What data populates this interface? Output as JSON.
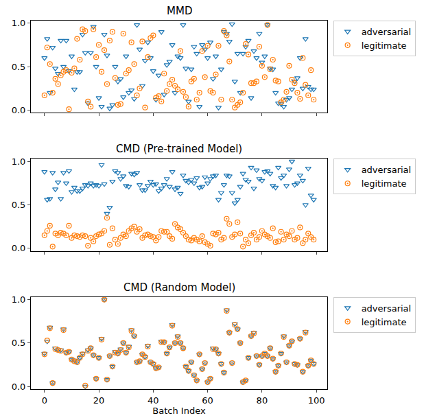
{
  "chart_data": [
    {
      "type": "scatter",
      "title": "MMD",
      "legend": "upper right",
      "tick_labels": "y",
      "xlim": [
        -5,
        104
      ],
      "xticks": [
        0,
        20,
        40,
        60,
        80,
        100
      ],
      "ylim": [
        -0.03,
        1.03
      ],
      "yticks": [
        {
          "value": 0,
          "label": "0.0"
        },
        {
          "value": 0.5,
          "label": "0.5"
        },
        {
          "value": 1,
          "label": "1.0"
        }
      ],
      "x": [
        0,
        1,
        2,
        3,
        4,
        5,
        6,
        7,
        8,
        9,
        10,
        11,
        12,
        13,
        14,
        15,
        16,
        17,
        18,
        19,
        20,
        21,
        22,
        23,
        24,
        25,
        26,
        27,
        28,
        29,
        30,
        31,
        32,
        33,
        34,
        35,
        36,
        37,
        38,
        39,
        40,
        41,
        42,
        43,
        44,
        45,
        46,
        47,
        48,
        49,
        50,
        51,
        52,
        53,
        54,
        55,
        56,
        57,
        58,
        59,
        60,
        61,
        62,
        63,
        64,
        65,
        66,
        67,
        68,
        69,
        70,
        71,
        72,
        73,
        74,
        75,
        76,
        77,
        78,
        79,
        80,
        81,
        82,
        83,
        84,
        85,
        86,
        87,
        88,
        89,
        90,
        91,
        92,
        93,
        94,
        95,
        96,
        97,
        98,
        99
      ],
      "series": [
        {
          "name": "adversarial",
          "color": "#1f77b4",
          "marker": "triangle-down-open",
          "values": [
            0.6,
            0.82,
            0.2,
            0.72,
            0.48,
            0.42,
            0.8,
            0.5,
            0.8,
            0.45,
            0.62,
            0.24,
            0.44,
            0.44,
            0.87,
            0.66,
            0.08,
            0.66,
            0.96,
            0.5,
            0.14,
            0.04,
            0.87,
            0.63,
            0.02,
            0.06,
            0.5,
            0.33,
            0.36,
            0.15,
            0.62,
            0.2,
            0.23,
            0.13,
            0.98,
            0.7,
            0.28,
            0.57,
            0.78,
            0.6,
            0.45,
            0.12,
            0.4,
            0.9,
            0.18,
            0.52,
            0.56,
            0.75,
            0.2,
            0.62,
            0.6,
            0.98,
            0.48,
            0.1,
            0.47,
            0.73,
            0.65,
            0.04,
            0.75,
            0.7,
            0.6,
            0.78,
            0.36,
            0.62,
            0.03,
            0.47,
            0.9,
            0.88,
            0.79,
            0.99,
            0.33,
            0.65,
            0.2,
            0.65,
            0.73,
            0.8,
            0.14,
            0.68,
            0.6,
            0.88,
            0.55,
            0.62,
            0.98,
            0.48,
            0.47,
            0.2,
            0.08,
            0.07,
            0.04,
            0.12,
            0.14,
            0.24,
            0.33,
            0.37,
            0.6,
            0.25,
            0.82,
            0.27,
            0.24,
            0.24
          ]
        },
        {
          "name": "legitimate",
          "color": "#ff7f0e",
          "marker": "circle-open-dot",
          "values": [
            0.17,
            0.72,
            0.53,
            0.2,
            0.36,
            0.3,
            0.4,
            0.44,
            0.46,
            0.01,
            0.43,
            0.48,
            0.82,
            0.58,
            0.93,
            0.91,
            0.1,
            0.04,
            0.93,
            0.61,
            0.75,
            0.44,
            0.69,
            0.3,
            0.8,
            0.9,
            0.37,
            0.06,
            0.07,
            0.88,
            0.42,
            0.46,
            0.78,
            0.53,
            0.17,
            0.25,
            0.79,
            0.03,
            0.61,
            0.83,
            0.86,
            0.14,
            0.16,
            0.1,
            0.42,
            0.22,
            0.3,
            0.35,
            0.28,
            0.24,
            0.68,
            0.21,
            0.15,
            0.04,
            0.33,
            0.36,
            0.12,
            0.2,
            0.68,
            0.38,
            0.74,
            0.22,
            0.2,
            0.41,
            0.74,
            0.12,
            0.91,
            0.86,
            0.56,
            0.12,
            0.03,
            0.06,
            0.09,
            0.2,
            0.76,
            0.64,
            0.31,
            0.31,
            0.33,
            0.73,
            0.51,
            0.38,
            0.98,
            0.47,
            0.58,
            0.34,
            0.33,
            0.09,
            0.12,
            0.21,
            0.51,
            0.35,
            0.31,
            0.2,
            0.13,
            0.6,
            0.29,
            0.17,
            0.46,
            0.12
          ]
        }
      ]
    },
    {
      "type": "scatter",
      "title": "CMD (Pre-trained Model)",
      "legend": "upper right",
      "tick_labels": "y",
      "xlim": [
        -5,
        104
      ],
      "xticks": [
        0,
        20,
        40,
        60,
        80,
        100
      ],
      "ylim": [
        -0.03,
        1.03
      ],
      "yticks": [
        {
          "value": 0,
          "label": "0.0"
        },
        {
          "value": 0.5,
          "label": "0.5"
        },
        {
          "value": 1,
          "label": "1.0"
        }
      ],
      "x": [
        0,
        1,
        2,
        3,
        4,
        5,
        6,
        7,
        8,
        9,
        10,
        11,
        12,
        13,
        14,
        15,
        16,
        17,
        18,
        19,
        20,
        21,
        22,
        23,
        24,
        25,
        26,
        27,
        28,
        29,
        30,
        31,
        32,
        33,
        34,
        35,
        36,
        37,
        38,
        39,
        40,
        41,
        42,
        43,
        44,
        45,
        46,
        47,
        48,
        49,
        50,
        51,
        52,
        53,
        54,
        55,
        56,
        57,
        58,
        59,
        60,
        61,
        62,
        63,
        64,
        65,
        66,
        67,
        68,
        69,
        70,
        71,
        72,
        73,
        74,
        75,
        76,
        77,
        78,
        79,
        80,
        81,
        82,
        83,
        84,
        85,
        86,
        87,
        88,
        89,
        90,
        91,
        92,
        93,
        94,
        95,
        96,
        97,
        98,
        99
      ],
      "series": [
        {
          "name": "adversarial",
          "color": "#1f77b4",
          "marker": "triangle-down-open",
          "values": [
            0.88,
            0.56,
            0.57,
            0.87,
            0.68,
            0.76,
            0.57,
            0.87,
            0.75,
            0.89,
            0.65,
            0.7,
            0.66,
            0.66,
            0.69,
            0.73,
            0.72,
            0.75,
            0.72,
            0.73,
            0.72,
            0.96,
            0.74,
            0.4,
            0.47,
            0.77,
            0.89,
            0.87,
            0.8,
            0.83,
            0.72,
            0.71,
            0.86,
            0.85,
            0.87,
            0.73,
            0.67,
            0.67,
            0.72,
            0.77,
            0.73,
            0.74,
            0.66,
            0.69,
            0.73,
            0.8,
            0.71,
            0.88,
            0.68,
            0.7,
            0.63,
            0.84,
            0.78,
            0.76,
            0.79,
            0.75,
            0.81,
            0.7,
            0.71,
            0.82,
            0.75,
            0.8,
            0.83,
            0.84,
            0.56,
            0.64,
            0.73,
            0.84,
            0.83,
            0.64,
            0.52,
            0.56,
            0.71,
            0.86,
            0.79,
            0.77,
            0.93,
            0.69,
            0.9,
            0.8,
            0.78,
            0.88,
            0.89,
            0.86,
            0.72,
            0.7,
            0.93,
            0.81,
            0.84,
            0.72,
            0.91,
            1.0,
            0.73,
            0.75,
            0.84,
            0.78,
            0.5,
            0.92,
            0.61,
            0.56
          ]
        },
        {
          "name": "legitimate",
          "color": "#ff7f0e",
          "marker": "circle-open-dot",
          "values": [
            0.15,
            0.2,
            0.26,
            0.02,
            0.17,
            0.15,
            0.18,
            0.17,
            0.15,
            0.26,
            0.12,
            0.15,
            0.14,
            0.13,
            0.15,
            0.14,
            0.03,
            0.12,
            0.08,
            0.14,
            0.16,
            0.17,
            0.2,
            0.35,
            0.04,
            0.23,
            0.1,
            0.05,
            0.12,
            0.16,
            0.14,
            0.2,
            0.23,
            0.25,
            0.19,
            0.22,
            0.12,
            0.15,
            0.16,
            0.14,
            0.13,
            0.09,
            0.13,
            0.2,
            0.19,
            0.19,
            0.14,
            0.11,
            0.28,
            0.24,
            0.22,
            0.18,
            0.14,
            0.1,
            0.09,
            0.12,
            0.1,
            0.08,
            0.14,
            0.07,
            0.05,
            0.03,
            0.17,
            0.16,
            0.18,
            0.1,
            0.12,
            0.34,
            0.28,
            0.13,
            0.16,
            0.3,
            0.17,
            0.02,
            0.1,
            0.06,
            0.15,
            0.18,
            0.1,
            0.13,
            0.2,
            0.16,
            0.14,
            0.12,
            0.23,
            0.07,
            0.08,
            0.19,
            0.1,
            0.16,
            0.14,
            0.2,
            0.1,
            0.12,
            0.24,
            0.06,
            0.1,
            0.17,
            0.13,
            0.1
          ]
        }
      ]
    },
    {
      "type": "scatter",
      "title": "CMD (Random Model)",
      "legend": "upper right",
      "x_label": "Batch Index",
      "xlim": [
        -5,
        104
      ],
      "xticks": [
        0,
        20,
        40,
        60,
        80,
        100
      ],
      "ylim": [
        -0.03,
        1.03
      ],
      "yticks": [
        {
          "value": 0,
          "label": "0.0"
        },
        {
          "value": 0.5,
          "label": "0.5"
        },
        {
          "value": 1,
          "label": "1.0"
        }
      ],
      "x": [
        0,
        1,
        2,
        3,
        4,
        5,
        6,
        7,
        8,
        9,
        10,
        11,
        12,
        13,
        14,
        15,
        16,
        17,
        18,
        19,
        20,
        21,
        22,
        23,
        24,
        25,
        26,
        27,
        28,
        29,
        30,
        31,
        32,
        33,
        34,
        35,
        36,
        37,
        38,
        39,
        40,
        41,
        42,
        43,
        44,
        45,
        46,
        47,
        48,
        49,
        50,
        51,
        52,
        53,
        54,
        55,
        56,
        57,
        58,
        59,
        60,
        61,
        62,
        63,
        64,
        65,
        66,
        67,
        68,
        69,
        70,
        71,
        72,
        73,
        74,
        75,
        76,
        77,
        78,
        79,
        80,
        81,
        82,
        83,
        84,
        85,
        86,
        87,
        88,
        89,
        90,
        91,
        92,
        93,
        94,
        95,
        96,
        97,
        98,
        99
      ],
      "series": [
        {
          "name": "adversarial",
          "color": "#1f77b4",
          "marker": "triangle-down-open",
          "values": [
            0.38,
            0.52,
            0.68,
            0.04,
            0.44,
            0.42,
            0.42,
            0.66,
            0.39,
            0.4,
            0.31,
            0.3,
            0.28,
            0.33,
            0.38,
            0.0,
            0.42,
            0.44,
            0.36,
            0.09,
            0.33,
            0.55,
            1.0,
            0.08,
            0.35,
            0.23,
            0.4,
            0.38,
            0.43,
            0.5,
            0.39,
            0.46,
            0.65,
            0.58,
            0.28,
            0.29,
            0.37,
            0.34,
            0.47,
            0.28,
            0.26,
            0.21,
            0.22,
            0.52,
            0.51,
            0.38,
            0.45,
            0.71,
            0.5,
            0.58,
            0.5,
            0.44,
            0.23,
            0.18,
            0.28,
            0.13,
            0.07,
            0.37,
            0.2,
            0.27,
            0.05,
            0.09,
            0.44,
            0.43,
            0.38,
            0.26,
            0.16,
            0.88,
            0.62,
            0.27,
            0.72,
            0.66,
            0.5,
            0.05,
            0.07,
            0.33,
            0.58,
            0.62,
            0.35,
            0.25,
            0.35,
            0.38,
            0.35,
            0.44,
            0.32,
            0.17,
            0.24,
            0.38,
            0.58,
            0.28,
            0.47,
            0.52,
            0.26,
            0.25,
            0.55,
            0.17,
            0.63,
            0.24,
            0.3,
            0.26
          ]
        },
        {
          "name": "legitimate",
          "color": "#ff7f0e",
          "marker": "circle-open-dot",
          "values": [
            0.37,
            0.53,
            0.67,
            0.04,
            0.43,
            0.42,
            0.41,
            0.65,
            0.39,
            0.4,
            0.31,
            0.29,
            0.28,
            0.33,
            0.37,
            0.01,
            0.41,
            0.44,
            0.36,
            0.09,
            0.33,
            0.54,
            1.0,
            0.08,
            0.35,
            0.23,
            0.39,
            0.38,
            0.42,
            0.5,
            0.39,
            0.45,
            0.64,
            0.58,
            0.28,
            0.29,
            0.37,
            0.34,
            0.46,
            0.28,
            0.26,
            0.21,
            0.22,
            0.51,
            0.51,
            0.38,
            0.45,
            0.7,
            0.5,
            0.57,
            0.5,
            0.44,
            0.23,
            0.18,
            0.28,
            0.13,
            0.07,
            0.37,
            0.2,
            0.27,
            0.05,
            0.09,
            0.43,
            0.43,
            0.38,
            0.26,
            0.16,
            0.87,
            0.62,
            0.27,
            0.71,
            0.66,
            0.5,
            0.05,
            0.07,
            0.33,
            0.58,
            0.61,
            0.35,
            0.25,
            0.35,
            0.38,
            0.35,
            0.44,
            0.32,
            0.17,
            0.24,
            0.38,
            0.57,
            0.28,
            0.47,
            0.52,
            0.26,
            0.25,
            0.55,
            0.17,
            0.62,
            0.24,
            0.3,
            0.26
          ]
        }
      ]
    }
  ]
}
